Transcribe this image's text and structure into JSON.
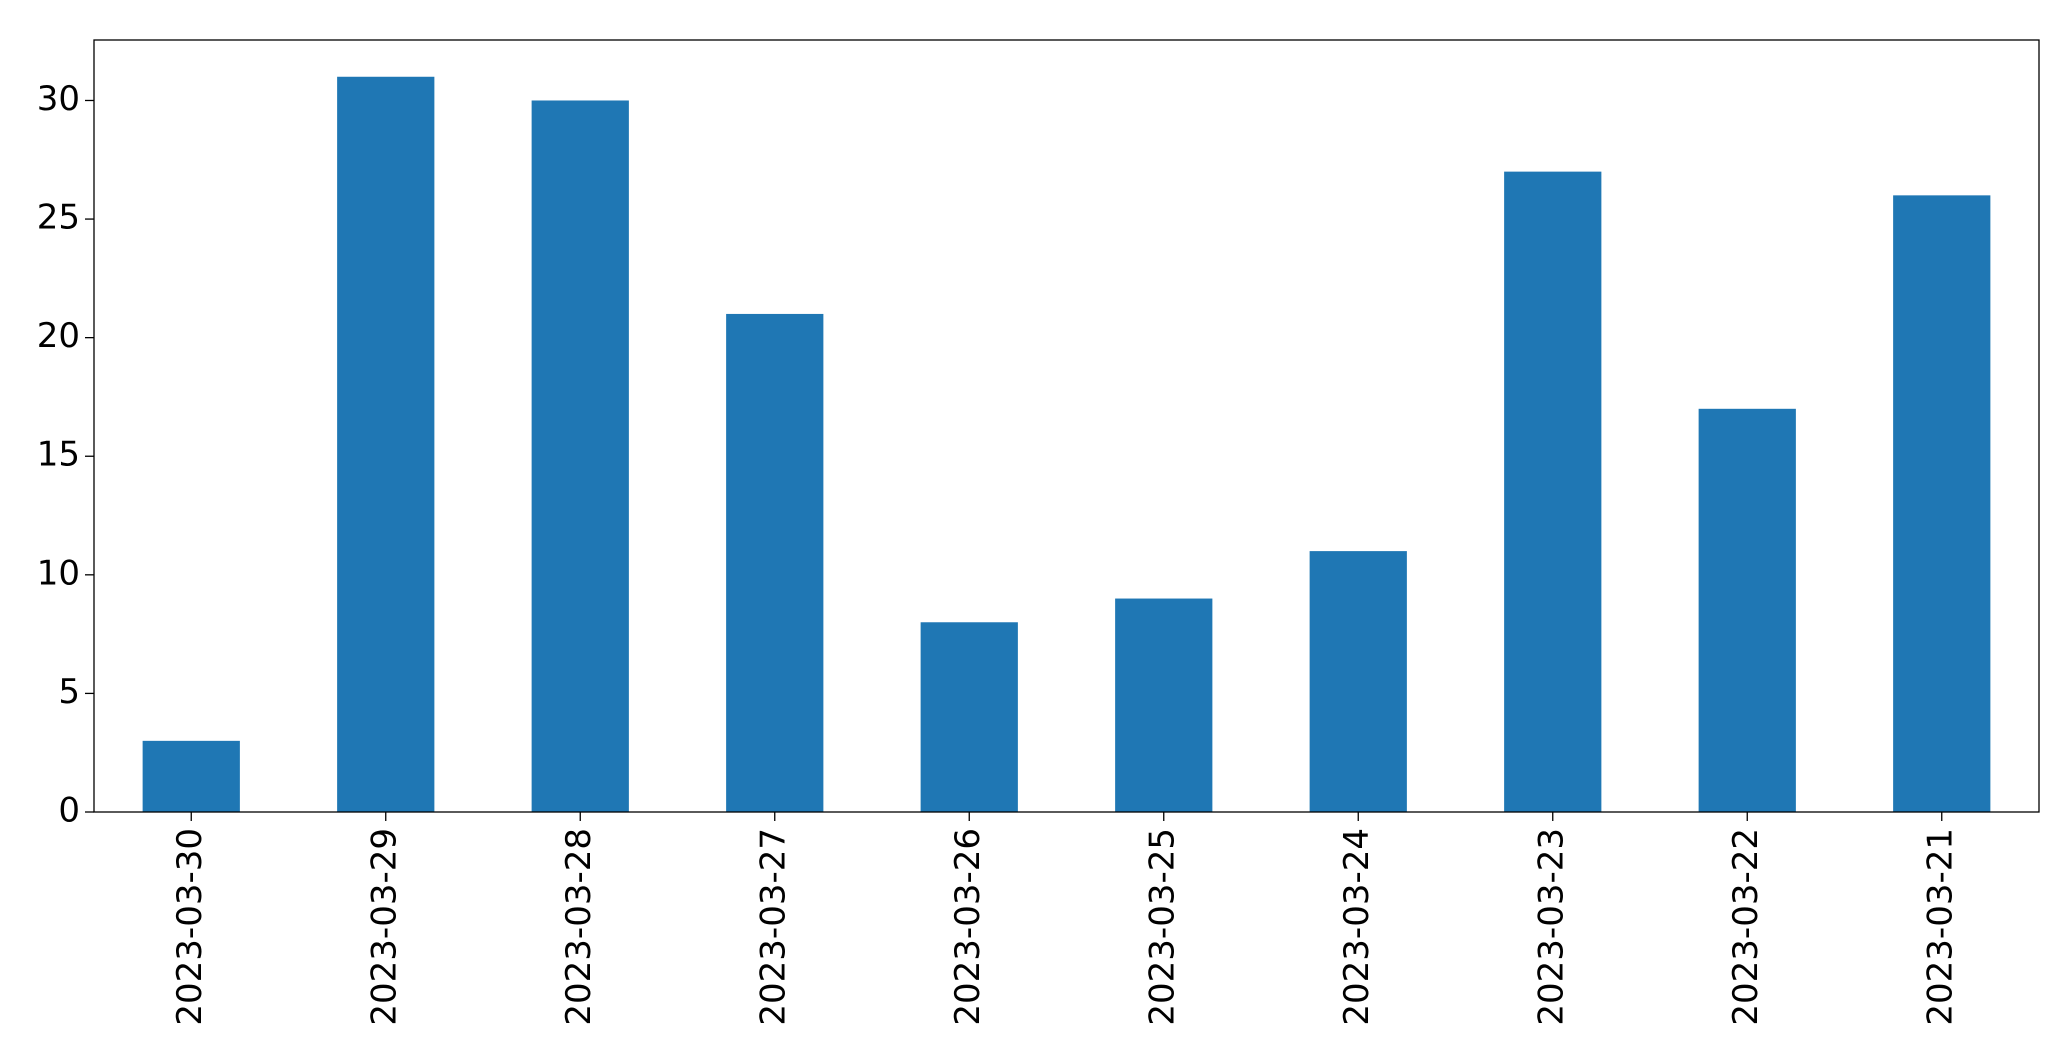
{
  "chart_data": {
    "type": "bar",
    "categories": [
      "2023-03-30",
      "2023-03-29",
      "2023-03-28",
      "2023-03-27",
      "2023-03-26",
      "2023-03-25",
      "2023-03-24",
      "2023-03-23",
      "2023-03-22",
      "2023-03-21"
    ],
    "values": [
      3,
      31,
      30,
      21,
      8,
      9,
      11,
      27,
      17,
      26
    ],
    "color": "#1f77b4",
    "ylim": [
      0,
      32.55
    ],
    "yticks": [
      0,
      5,
      10,
      15,
      20,
      25,
      30
    ],
    "grid": false
  }
}
